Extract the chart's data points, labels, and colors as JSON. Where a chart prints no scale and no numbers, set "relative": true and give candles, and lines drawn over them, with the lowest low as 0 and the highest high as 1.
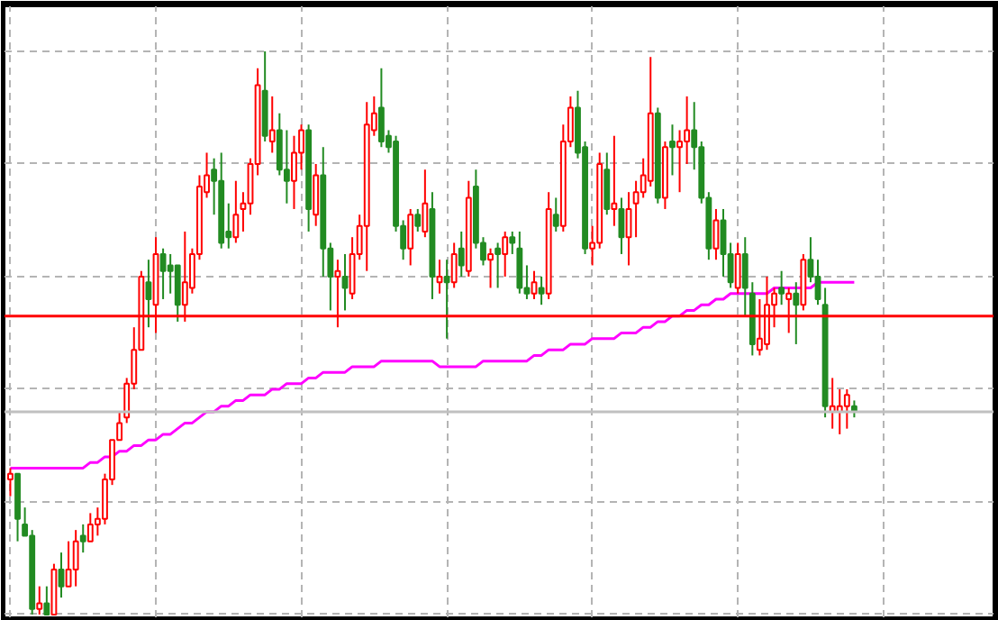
{
  "chart_data": {
    "type": "candlestick",
    "relative": true,
    "grid": true,
    "categories": [
      null,
      null,
      null,
      null,
      null,
      null,
      null,
      null,
      null,
      null,
      null,
      null,
      null,
      null,
      null,
      null,
      null,
      null,
      null,
      null,
      null,
      null,
      null,
      null,
      null,
      null,
      null,
      null,
      null,
      null,
      null,
      null,
      null,
      null,
      null,
      null,
      null,
      null,
      null,
      null,
      null,
      null,
      null,
      null,
      null,
      null,
      null,
      null,
      null,
      null,
      null,
      null,
      null,
      null,
      null,
      null,
      null,
      null,
      null,
      null,
      null,
      null,
      null,
      null,
      null,
      null,
      null,
      null,
      null,
      null,
      null,
      null,
      null,
      null,
      null,
      null,
      null,
      null,
      null,
      null,
      null,
      null,
      null,
      null,
      null,
      null,
      null,
      null,
      null,
      null,
      null,
      null,
      null,
      null,
      null,
      null,
      null,
      null,
      null,
      null,
      null,
      null,
      null,
      null,
      null,
      null,
      null,
      null,
      null,
      null,
      null,
      null,
      null,
      null,
      null,
      null,
      null
    ],
    "ohlc": [
      [
        0.24,
        0.26,
        0.21,
        0.25
      ],
      [
        0.25,
        0.25,
        0.13,
        0.17
      ],
      [
        0.16,
        0.19,
        0.14,
        0.14
      ],
      [
        0.14,
        0.15,
        0,
        0.01
      ],
      [
        0.01,
        0.05,
        0,
        0.02
      ],
      [
        0.02,
        0.05,
        0,
        0
      ],
      [
        0,
        0.09,
        0,
        0.08
      ],
      [
        0.08,
        0.11,
        0.03,
        0.05
      ],
      [
        0.05,
        0.13,
        0.05,
        0.08
      ],
      [
        0.08,
        0.15,
        0.05,
        0.13
      ],
      [
        0.14,
        0.16,
        0.11,
        0.13
      ],
      [
        0.13,
        0.18,
        0.13,
        0.16
      ],
      [
        0.16,
        0.19,
        0.14,
        0.17
      ],
      [
        0.17,
        0.25,
        0.16,
        0.24
      ],
      [
        0.24,
        0.31,
        0.23,
        0.31
      ],
      [
        0.31,
        0.36,
        0.31,
        0.34
      ],
      [
        0.35,
        0.42,
        0.34,
        0.41
      ],
      [
        0.41,
        0.51,
        0.4,
        0.47
      ],
      [
        0.47,
        0.61,
        0.47,
        0.6
      ],
      [
        0.59,
        0.63,
        0.51,
        0.56
      ],
      [
        0.55,
        0.67,
        0.5,
        0.64
      ],
      [
        0.64,
        0.65,
        0.56,
        0.61
      ],
      [
        0.62,
        0.64,
        0.57,
        0.61
      ],
      [
        0.62,
        0.62,
        0.52,
        0.55
      ],
      [
        0.55,
        0.68,
        0.52,
        0.59
      ],
      [
        0.58,
        0.65,
        0.57,
        0.64
      ],
      [
        0.64,
        0.78,
        0.63,
        0.76
      ],
      [
        0.75,
        0.82,
        0.74,
        0.78
      ],
      [
        0.79,
        0.81,
        0.71,
        0.77
      ],
      [
        0.77,
        0.82,
        0.65,
        0.66
      ],
      [
        0.68,
        0.73,
        0.65,
        0.67
      ],
      [
        0.67,
        0.77,
        0.66,
        0.71
      ],
      [
        0.72,
        0.75,
        0.68,
        0.73
      ],
      [
        0.73,
        0.81,
        0.71,
        0.8
      ],
      [
        0.8,
        0.97,
        0.78,
        0.94
      ],
      [
        0.93,
        1,
        0.84,
        0.85
      ],
      [
        0.84,
        0.92,
        0.82,
        0.86
      ],
      [
        0.86,
        0.89,
        0.78,
        0.79
      ],
      [
        0.79,
        0.86,
        0.73,
        0.77
      ],
      [
        0.77,
        0.85,
        0.72,
        0.82
      ],
      [
        0.82,
        0.87,
        0.79,
        0.86
      ],
      [
        0.86,
        0.87,
        0.68,
        0.72
      ],
      [
        0.71,
        0.8,
        0.69,
        0.78
      ],
      [
        0.78,
        0.83,
        0.6,
        0.65
      ],
      [
        0.65,
        0.66,
        0.54,
        0.6
      ],
      [
        0.6,
        0.63,
        0.51,
        0.61
      ],
      [
        0.6,
        0.64,
        0.54,
        0.58
      ],
      [
        0.57,
        0.67,
        0.56,
        0.64
      ],
      [
        0.64,
        0.71,
        0.63,
        0.69
      ],
      [
        0.69,
        0.91,
        0.61,
        0.87
      ],
      [
        0.86,
        0.92,
        0.85,
        0.89
      ],
      [
        0.9,
        0.97,
        0.83,
        0.84
      ],
      [
        0.85,
        0.86,
        0.82,
        0.83
      ],
      [
        0.84,
        0.85,
        0.68,
        0.69
      ],
      [
        0.69,
        0.7,
        0.63,
        0.65
      ],
      [
        0.65,
        0.72,
        0.62,
        0.71
      ],
      [
        0.71,
        0.72,
        0.68,
        0.69
      ],
      [
        0.68,
        0.79,
        0.67,
        0.73
      ],
      [
        0.72,
        0.75,
        0.56,
        0.6
      ],
      [
        0.59,
        0.63,
        0.57,
        0.6
      ],
      [
        0.6,
        0.63,
        0.49,
        0.59
      ],
      [
        0.59,
        0.66,
        0.58,
        0.64
      ],
      [
        0.65,
        0.68,
        0.6,
        0.62
      ],
      [
        0.61,
        0.77,
        0.6,
        0.74
      ],
      [
        0.76,
        0.79,
        0.65,
        0.66
      ],
      [
        0.66,
        0.67,
        0.62,
        0.63
      ],
      [
        0.63,
        0.65,
        0.58,
        0.64
      ],
      [
        0.65,
        0.66,
        0.58,
        0.64
      ],
      [
        0.64,
        0.68,
        0.6,
        0.67
      ],
      [
        0.67,
        0.68,
        0.64,
        0.66
      ],
      [
        0.65,
        0.68,
        0.57,
        0.58
      ],
      [
        0.58,
        0.62,
        0.56,
        0.57
      ],
      [
        0.57,
        0.61,
        0.56,
        0.59
      ],
      [
        0.58,
        0.6,
        0.55,
        0.57
      ],
      [
        0.57,
        0.75,
        0.56,
        0.72
      ],
      [
        0.71,
        0.74,
        0.68,
        0.69
      ],
      [
        0.69,
        0.87,
        0.68,
        0.84
      ],
      [
        0.84,
        0.92,
        0.83,
        0.9
      ],
      [
        0.9,
        0.93,
        0.81,
        0.82
      ],
      [
        0.83,
        0.84,
        0.64,
        0.65
      ],
      [
        0.65,
        0.69,
        0.62,
        0.66
      ],
      [
        0.66,
        0.82,
        0.65,
        0.8
      ],
      [
        0.79,
        0.82,
        0.71,
        0.72
      ],
      [
        0.72,
        0.85,
        0.69,
        0.73
      ],
      [
        0.72,
        0.74,
        0.64,
        0.67
      ],
      [
        0.67,
        0.75,
        0.62,
        0.72
      ],
      [
        0.73,
        0.77,
        0.67,
        0.75
      ],
      [
        0.75,
        0.81,
        0.74,
        0.78
      ],
      [
        0.77,
        0.99,
        0.76,
        0.89
      ],
      [
        0.89,
        0.9,
        0.73,
        0.74
      ],
      [
        0.74,
        0.84,
        0.72,
        0.83
      ],
      [
        0.84,
        0.87,
        0.78,
        0.83
      ],
      [
        0.83,
        0.86,
        0.75,
        0.84
      ],
      [
        0.84,
        0.92,
        0.8,
        0.86
      ],
      [
        0.86,
        0.91,
        0.79,
        0.83
      ],
      [
        0.83,
        0.84,
        0.73,
        0.74
      ],
      [
        0.74,
        0.75,
        0.63,
        0.65
      ],
      [
        0.65,
        0.72,
        0.63,
        0.7
      ],
      [
        0.7,
        0.72,
        0.6,
        0.64
      ],
      [
        0.64,
        0.66,
        0.58,
        0.59
      ],
      [
        0.58,
        0.66,
        0.57,
        0.64
      ],
      [
        0.64,
        0.67,
        0.53,
        0.58
      ],
      [
        0.57,
        0.59,
        0.46,
        0.48
      ],
      [
        0.47,
        0.56,
        0.46,
        0.49
      ],
      [
        0.48,
        0.6,
        0.47,
        0.55
      ],
      [
        0.55,
        0.58,
        0.51,
        0.57
      ],
      [
        0.58,
        0.61,
        0.55,
        0.57
      ],
      [
        0.56,
        0.58,
        0.5,
        0.57
      ],
      [
        0.57,
        0.59,
        0.48,
        0.55
      ],
      [
        0.55,
        0.64,
        0.54,
        0.63
      ],
      [
        0.63,
        0.67,
        0.59,
        0.6
      ],
      [
        0.6,
        0.63,
        0.55,
        0.56
      ],
      [
        0.55,
        0.58,
        0.35,
        0.37
      ],
      [
        0.36,
        0.42,
        0.33,
        0.37
      ],
      [
        0.36,
        0.4,
        0.32,
        0.37
      ],
      [
        0.37,
        0.4,
        0.33,
        0.39
      ],
      [
        0.37,
        0.38,
        0.35,
        0.36
      ]
    ],
    "colors": [
      "#ff0000",
      "#228b22",
      "#228b22",
      "#228b22",
      "#ff0000",
      "#228b22",
      "#ff0000",
      "#228b22",
      "#ff0000",
      "#ff0000",
      "#228b22",
      "#ff0000",
      "#ff0000",
      "#ff0000",
      "#ff0000",
      "#ff0000",
      "#ff0000",
      "#ff0000",
      "#ff0000",
      "#228b22",
      "#ff0000",
      "#228b22",
      "#228b22",
      "#228b22",
      "#ff0000",
      "#ff0000",
      "#ff0000",
      "#ff0000",
      "#228b22",
      "#228b22",
      "#228b22",
      "#ff0000",
      "#ff0000",
      "#ff0000",
      "#ff0000",
      "#228b22",
      "#ff0000",
      "#228b22",
      "#228b22",
      "#ff0000",
      "#ff0000",
      "#228b22",
      "#ff0000",
      "#228b22",
      "#228b22",
      "#ff0000",
      "#228b22",
      "#ff0000",
      "#ff0000",
      "#ff0000",
      "#ff0000",
      "#228b22",
      "#228b22",
      "#228b22",
      "#228b22",
      "#ff0000",
      "#228b22",
      "#ff0000",
      "#228b22",
      "#ff0000",
      "#228b22",
      "#ff0000",
      "#228b22",
      "#ff0000",
      "#228b22",
      "#228b22",
      "#ff0000",
      "#228b22",
      "#ff0000",
      "#228b22",
      "#228b22",
      "#228b22",
      "#ff0000",
      "#228b22",
      "#ff0000",
      "#228b22",
      "#ff0000",
      "#ff0000",
      "#228b22",
      "#228b22",
      "#ff0000",
      "#ff0000",
      "#228b22",
      "#ff0000",
      "#228b22",
      "#ff0000",
      "#ff0000",
      "#ff0000",
      "#ff0000",
      "#228b22",
      "#ff0000",
      "#228b22",
      "#ff0000",
      "#ff0000",
      "#228b22",
      "#228b22",
      "#228b22",
      "#ff0000",
      "#228b22",
      "#228b22",
      "#ff0000",
      "#228b22",
      "#228b22",
      "#ff0000",
      "#ff0000",
      "#ff0000",
      "#228b22",
      "#ff0000",
      "#228b22",
      "#ff0000",
      "#228b22",
      "#228b22",
      "#228b22",
      "#ff0000",
      "#ff0000",
      "#ff0000",
      "#228b22"
    ],
    "series": [
      {
        "type": "line",
        "color": "#ff00ff",
        "values": [
          0.26,
          0.26,
          0.26,
          0.26,
          0.26,
          0.26,
          0.26,
          0.26,
          0.26,
          0.26,
          0.26,
          0.27,
          0.27,
          0.28,
          0.28,
          0.29,
          0.29,
          0.3,
          0.3,
          0.31,
          0.31,
          0.32,
          0.32,
          0.33,
          0.34,
          0.34,
          0.35,
          0.36,
          0.36,
          0.37,
          0.37,
          0.38,
          0.38,
          0.39,
          0.39,
          0.39,
          0.4,
          0.4,
          0.41,
          0.41,
          0.41,
          0.42,
          0.42,
          0.43,
          0.43,
          0.43,
          0.43,
          0.44,
          0.44,
          0.44,
          0.44,
          0.45,
          0.45,
          0.45,
          0.45,
          0.45,
          0.45,
          0.45,
          0.45,
          0.44,
          0.44,
          0.44,
          0.44,
          0.44,
          0.44,
          0.45,
          0.45,
          0.45,
          0.45,
          0.45,
          0.45,
          0.45,
          0.46,
          0.46,
          0.47,
          0.47,
          0.47,
          0.48,
          0.48,
          0.48,
          0.49,
          0.49,
          0.49,
          0.49,
          0.5,
          0.5,
          0.5,
          0.51,
          0.51,
          0.52,
          0.52,
          0.53,
          0.53,
          0.54,
          0.54,
          0.55,
          0.55,
          0.56,
          0.56,
          0.57,
          0.57,
          0.57,
          0.57,
          0.57,
          0.57,
          0.58,
          0.58,
          0.58,
          0.58,
          0.58,
          0.58,
          0.59,
          0.59,
          0.59,
          0.59,
          0.59,
          0.59
        ]
      }
    ],
    "ref_lines": [
      {
        "axis": "y",
        "value": 0.53,
        "color": "#ff0000",
        "line_style": "solid"
      },
      {
        "axis": "y",
        "value": 0.36,
        "color": "#c0c0c0",
        "line_style": "solid"
      }
    ]
  }
}
